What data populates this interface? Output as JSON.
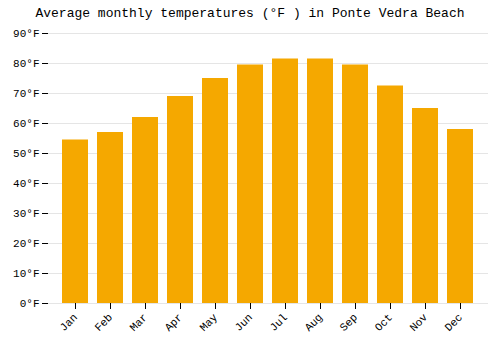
{
  "chart_data": {
    "type": "bar",
    "title": "Average monthly temperatures (°F ) in Ponte Vedra Beach",
    "categories": [
      "Jan",
      "Feb",
      "Mar",
      "Apr",
      "May",
      "Jun",
      "Jul",
      "Aug",
      "Sep",
      "Oct",
      "Nov",
      "Dec"
    ],
    "values": [
      54.5,
      57,
      62,
      69,
      75,
      79.5,
      81.5,
      81.5,
      79.5,
      72.5,
      65,
      58
    ],
    "color": "#F5A800",
    "ylim": [
      0,
      90
    ],
    "yticks": [
      {
        "value": 0,
        "label": "0°F"
      },
      {
        "value": 10,
        "label": "10°F"
      },
      {
        "value": 20,
        "label": "20°F"
      },
      {
        "value": 30,
        "label": "30°F"
      },
      {
        "value": 40,
        "label": "40°F"
      },
      {
        "value": 50,
        "label": "50°F"
      },
      {
        "value": 60,
        "label": "60°F"
      },
      {
        "value": 70,
        "label": "70°F"
      },
      {
        "value": 80,
        "label": "80°F"
      },
      {
        "value": 90,
        "label": "90°F"
      }
    ],
    "grid": true
  }
}
